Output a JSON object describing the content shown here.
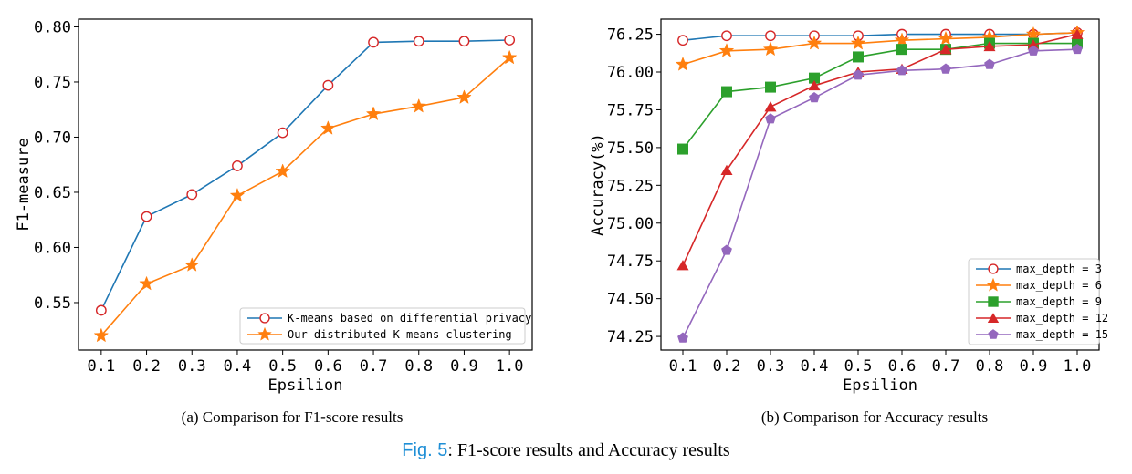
{
  "chart_data": [
    {
      "type": "line",
      "title": "",
      "xlabel": "Epsilion",
      "ylabel": "F1-measure",
      "x": [
        0.1,
        0.2,
        0.3,
        0.4,
        0.5,
        0.6,
        0.7,
        0.8,
        0.9,
        1.0
      ],
      "x_tick_labels": [
        "0.1",
        "0.2",
        "0.3",
        "0.4",
        "0.5",
        "0.6",
        "0.7",
        "0.8",
        "0.9",
        "1.0"
      ],
      "y_ticks": [
        0.55,
        0.6,
        0.65,
        0.7,
        0.75,
        0.8
      ],
      "y_tick_labels": [
        "0.55",
        "0.60",
        "0.65",
        "0.70",
        "0.75",
        "0.80"
      ],
      "xlim": [
        0.05,
        1.05
      ],
      "ylim": [
        0.507,
        0.807
      ],
      "grid": false,
      "legend_position": "lower-right",
      "series": [
        {
          "name": "K-means based on differential privacy",
          "color": "#1f77b4",
          "marker": "circle-open",
          "values": [
            0.543,
            0.628,
            0.648,
            0.674,
            0.704,
            0.747,
            0.786,
            0.787,
            0.787,
            0.788
          ]
        },
        {
          "name": "Our distributed K-means clustering",
          "color": "#ff7f0e",
          "marker": "star",
          "values": [
            0.52,
            0.567,
            0.584,
            0.647,
            0.669,
            0.708,
            0.721,
            0.728,
            0.736,
            0.772
          ]
        }
      ],
      "subcaption": "(a) Comparison for F1-score results"
    },
    {
      "type": "line",
      "title": "",
      "xlabel": "Epsilion",
      "ylabel": "Accuracy(%)",
      "x": [
        0.1,
        0.2,
        0.3,
        0.4,
        0.5,
        0.6,
        0.7,
        0.8,
        0.9,
        1.0
      ],
      "x_tick_labels": [
        "0.1",
        "0.2",
        "0.3",
        "0.4",
        "0.5",
        "0.6",
        "0.7",
        "0.8",
        "0.9",
        "1.0"
      ],
      "y_ticks": [
        74.25,
        74.5,
        74.75,
        75.0,
        75.25,
        75.5,
        75.75,
        76.0,
        76.25
      ],
      "y_tick_labels": [
        "74.25",
        "74.50",
        "74.75",
        "75.00",
        "75.25",
        "75.50",
        "75.75",
        "76.00",
        "76.25"
      ],
      "xlim": [
        0.05,
        1.05
      ],
      "ylim": [
        74.16,
        76.35
      ],
      "grid": false,
      "legend_position": "lower-right",
      "series": [
        {
          "name": "max_depth = 3",
          "color": "#1f77b4",
          "marker": "circle-open",
          "values": [
            76.21,
            76.24,
            76.24,
            76.24,
            76.24,
            76.25,
            76.25,
            76.25,
            76.25,
            76.26
          ]
        },
        {
          "name": "max_depth = 6",
          "color": "#ff7f0e",
          "marker": "star",
          "values": [
            76.05,
            76.14,
            76.15,
            76.19,
            76.19,
            76.21,
            76.22,
            76.23,
            76.25,
            76.26
          ]
        },
        {
          "name": "max_depth = 9",
          "color": "#2ca02c",
          "marker": "square",
          "values": [
            75.49,
            75.87,
            75.9,
            75.96,
            76.1,
            76.15,
            76.15,
            76.19,
            76.19,
            76.19
          ]
        },
        {
          "name": "max_depth = 12",
          "color": "#d62728",
          "marker": "triangle",
          "values": [
            74.72,
            75.35,
            75.77,
            75.91,
            76.0,
            76.02,
            76.15,
            76.17,
            76.18,
            76.25
          ]
        },
        {
          "name": "max_depth = 15",
          "color": "#9467bd",
          "marker": "pentagon",
          "values": [
            74.24,
            74.82,
            75.69,
            75.83,
            75.98,
            76.01,
            76.02,
            76.05,
            76.14,
            76.15
          ]
        }
      ],
      "subcaption": "(b) Comparison for Accuracy results"
    }
  ],
  "caption": {
    "figref": "Fig. 5",
    "text": ": F1-score results and Accuracy results"
  }
}
